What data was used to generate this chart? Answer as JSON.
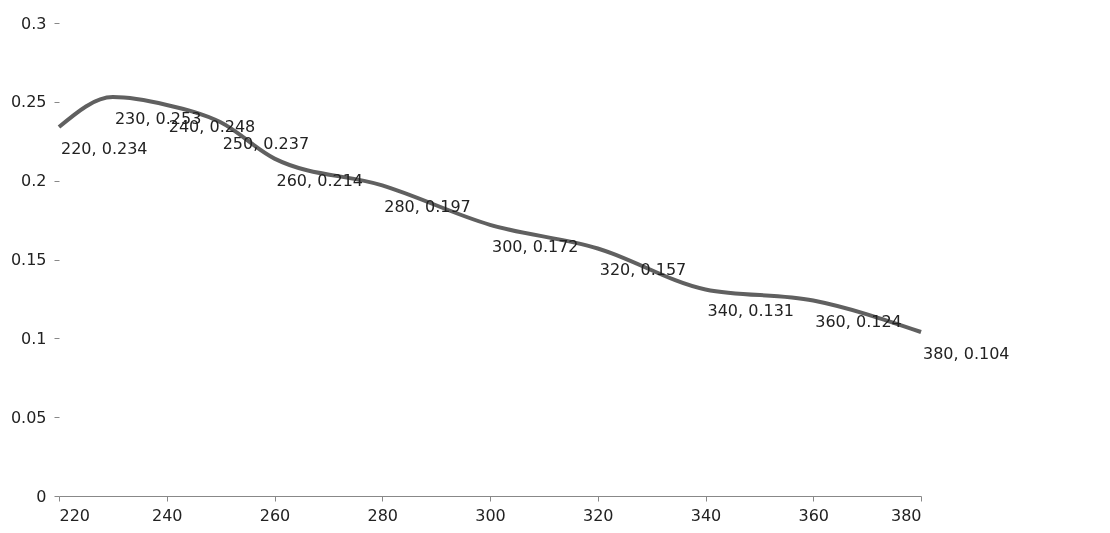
{
  "chart_data": {
    "type": "line",
    "x": [
      220,
      230,
      240,
      250,
      260,
      280,
      300,
      320,
      340,
      360,
      380
    ],
    "series": [
      {
        "color": "#606060",
        "values": [
          0.234,
          0.253,
          0.248,
          0.237,
          0.214,
          0.197,
          0.172,
          0.157,
          0.131,
          0.124,
          0.104
        ],
        "value_labels": [
          "220, 0.234",
          "230, 0.253",
          "240, 0.248",
          "250, 0.237",
          "260, 0.214",
          "280, 0.197",
          "300, 0.172",
          "320, 0.157",
          "340, 0.131",
          "360, 0.124",
          "380, 0.104"
        ]
      }
    ],
    "xlim": [
      220,
      380
    ],
    "xticks": [
      220,
      240,
      260,
      280,
      300,
      320,
      340,
      360,
      380
    ],
    "ylim": [
      0,
      0.3
    ],
    "yticks": [
      0,
      0.05,
      0.1,
      0.15,
      0.2,
      0.25,
      0.3
    ],
    "grid": false,
    "marker": "none",
    "line_style": "solid"
  }
}
